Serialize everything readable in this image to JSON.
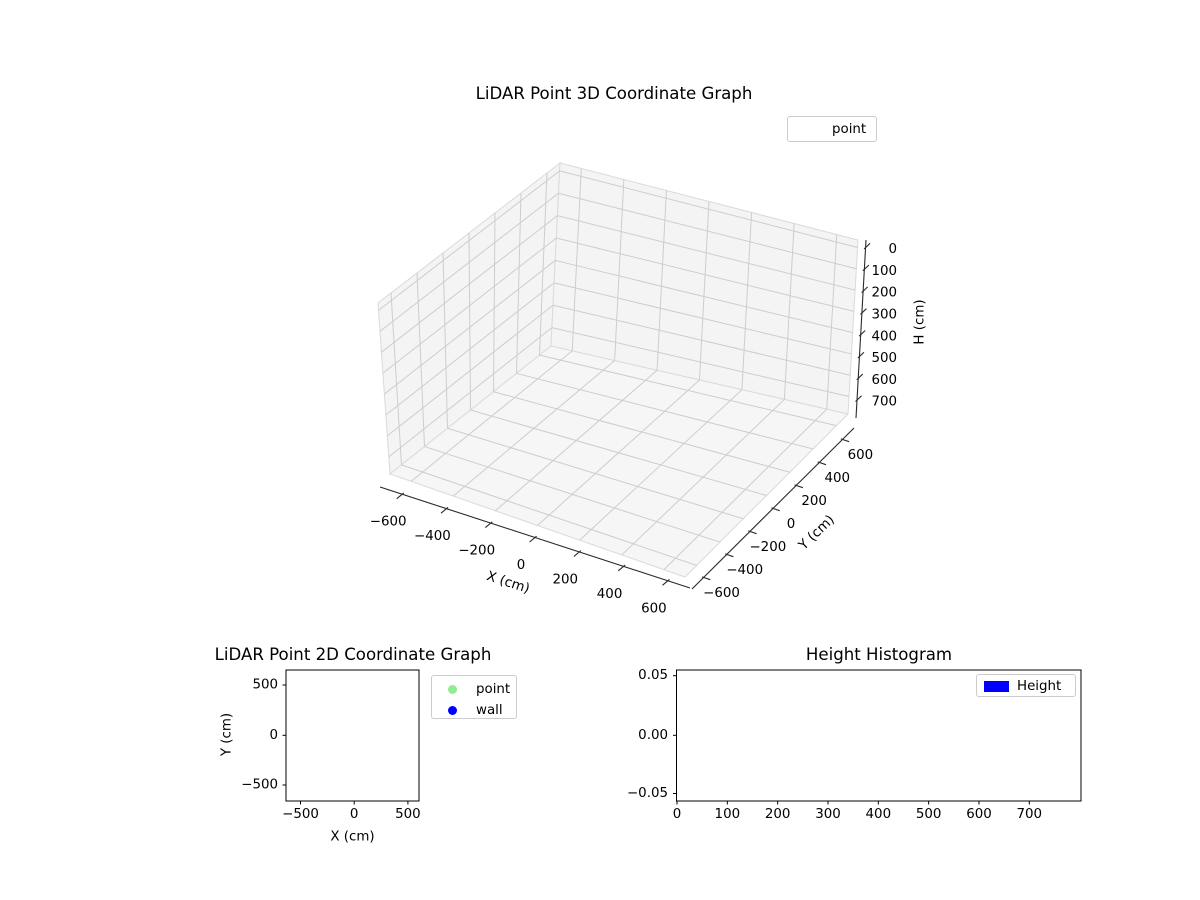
{
  "figure": {
    "background": "#ffffff"
  },
  "p3d": {
    "title": "LiDAR Point 3D Coordinate Graph",
    "xlabel": "X (cm)",
    "ylabel": "Y (cm)",
    "zlabel": "H (cm)",
    "xtick_labels": [
      "−600",
      "−400",
      "−200",
      "0",
      "200",
      "400",
      "600"
    ],
    "ytick_labels": [
      "−600",
      "−400",
      "−200",
      "0",
      "200",
      "400",
      "600"
    ],
    "ztick_labels": [
      "0",
      "100",
      "200",
      "300",
      "400",
      "500",
      "600",
      "700"
    ],
    "legend": [
      {
        "label": "point",
        "marker_color": "none"
      }
    ]
  },
  "p2d": {
    "title": "LiDAR Point 2D Coordinate Graph",
    "xlabel": "X (cm)",
    "ylabel": "Y (cm)",
    "xtick_labels": [
      "−500",
      "0",
      "500"
    ],
    "ytick_labels": [
      "500",
      "0",
      "−500"
    ],
    "legend": [
      {
        "label": "point",
        "marker": "dot",
        "color": "#90ee90"
      },
      {
        "label": "wall",
        "marker": "dot",
        "color": "#0000ff"
      }
    ]
  },
  "hist": {
    "title": "Height Histogram",
    "xtick_labels": [
      "0",
      "100",
      "200",
      "300",
      "400",
      "500",
      "600",
      "700"
    ],
    "ytick_labels": [
      "0.05",
      "0.00",
      "−0.05"
    ],
    "legend": [
      {
        "label": "Height",
        "marker": "patch",
        "color": "#0000ff"
      }
    ]
  },
  "colors": {
    "pane_wall": "#f4f4f4",
    "pane_floor": "#f6f6f6",
    "pane_edge": "#dadada",
    "grid3d": "#cdcdcd",
    "axis3d": "#2a2a2a",
    "spine2d": "#000000",
    "text": "#000000"
  },
  "chart_data": [
    {
      "type": "scatter",
      "projection": "3d",
      "title": "LiDAR Point 3D Coordinate Graph",
      "xlabel": "X (cm)",
      "ylabel": "Y (cm)",
      "zlabel": "H (cm)",
      "xlim": [
        -700,
        700
      ],
      "ylim": [
        -700,
        700
      ],
      "zlim": [
        -35,
        782
      ],
      "z_axis_inverted": true,
      "xticks": [
        -600,
        -400,
        -200,
        0,
        200,
        400,
        600
      ],
      "yticks": [
        -600,
        -400,
        -200,
        0,
        200,
        400,
        600
      ],
      "zticks": [
        0,
        100,
        200,
        300,
        400,
        500,
        600,
        700
      ],
      "grid": true,
      "legend_position": "upper right",
      "series": [
        {
          "name": "point",
          "points": []
        }
      ],
      "note": "3D axes are empty - no data points are plotted"
    },
    {
      "type": "scatter",
      "title": "LiDAR Point 2D Coordinate Graph",
      "xlabel": "X (cm)",
      "ylabel": "Y (cm)",
      "xlim": [
        -640,
        600
      ],
      "ylim": [
        -660,
        670
      ],
      "xticks": [
        -500,
        0,
        500
      ],
      "yticks": [
        500,
        0,
        -500
      ],
      "grid": false,
      "legend_position": "outside upper right",
      "series": [
        {
          "name": "point",
          "color": "#90ee90",
          "points": []
        },
        {
          "name": "wall",
          "color": "#0000ff",
          "points": []
        }
      ],
      "note": "2D axes are empty - no data points are plotted"
    },
    {
      "type": "bar",
      "subtype": "histogram",
      "title": "Height Histogram",
      "xlabel": "",
      "ylabel": "",
      "xlim": [
        0,
        800
      ],
      "ylim": [
        -0.055,
        0.055
      ],
      "xticks": [
        0,
        100,
        200,
        300,
        400,
        500,
        600,
        700
      ],
      "yticks": [
        0.05,
        0.0,
        -0.05
      ],
      "grid": false,
      "legend_position": "upper right",
      "series": [
        {
          "name": "Height",
          "color": "#0000ff",
          "values": []
        }
      ],
      "note": "histogram is empty - no bars are plotted"
    }
  ]
}
